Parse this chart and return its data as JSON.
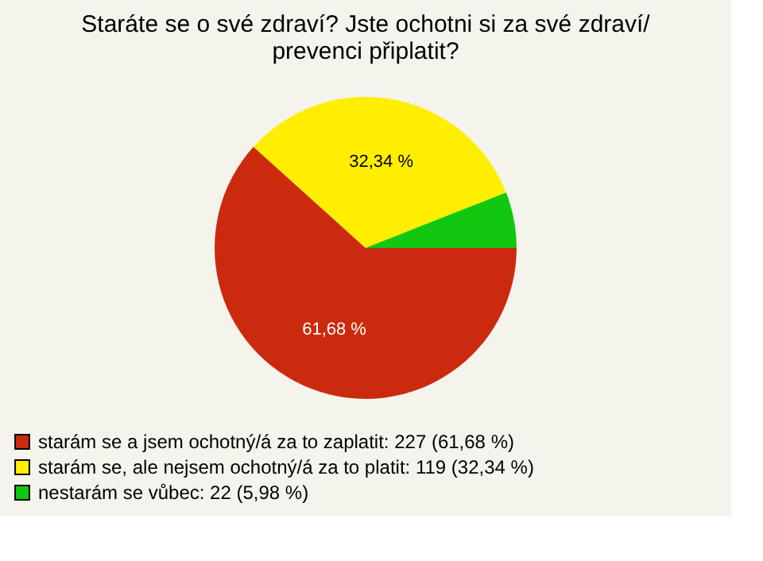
{
  "chart_data": {
    "type": "pie",
    "title": "Staráte se o své zdraví? Jste ochotni si za své zdraví/ prevenci připlatit?",
    "categories": [
      "starám se a jsem ochotný/á za to zaplatit: 227 (61,68 %)",
      "starám se, ale nejsem ochotný/á za to platit: 119 (32,34 %)",
      "nestarám se vůbec: 22 (5,98 %)"
    ],
    "values": [
      61.68,
      32.34,
      5.98
    ],
    "colors": [
      "#cc2a0e",
      "#ffee00",
      "#11c811"
    ],
    "value_labels": [
      "61,68 %",
      "32,34 %",
      null
    ],
    "legend": "bottom left"
  }
}
